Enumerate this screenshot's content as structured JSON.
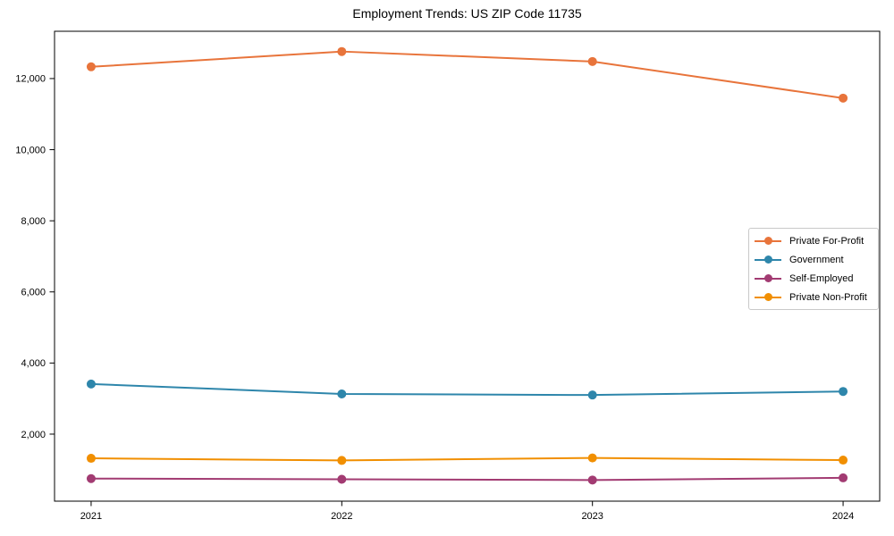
{
  "chart_data": {
    "type": "line",
    "title": "Employment Trends: US ZIP Code 11735",
    "xlabel": "",
    "ylabel": "",
    "x": [
      2021,
      2022,
      2023,
      2024
    ],
    "x_labels": [
      "2021",
      "2022",
      "2023",
      "2024"
    ],
    "y_ticks": [
      2000,
      4000,
      6000,
      8000,
      10000,
      12000
    ],
    "y_tick_labels": [
      "2,000",
      "4,000",
      "6,000",
      "8,000",
      "10,000",
      "12,000"
    ],
    "series": [
      {
        "name": "Private For-Profit",
        "color": "#E8743B",
        "values": [
          12330,
          12760,
          12480,
          11450
        ]
      },
      {
        "name": "Government",
        "color": "#2E86AB",
        "values": [
          3410,
          3130,
          3100,
          3200
        ]
      },
      {
        "name": "Self-Employed",
        "color": "#A23B72",
        "values": [
          750,
          730,
          710,
          770
        ]
      },
      {
        "name": "Private Non-Profit",
        "color": "#F18F01",
        "values": [
          1320,
          1260,
          1330,
          1270
        ]
      }
    ],
    "layout": {
      "xlim": [
        2020.854,
        2024.146
      ],
      "ylim": [
        115,
        13330
      ],
      "grid": false,
      "legend_position": "center-right",
      "marker": "circle",
      "line_width": 2,
      "marker_radius": 5,
      "axis_color": "#000000",
      "background_color": "#ffffff"
    }
  }
}
